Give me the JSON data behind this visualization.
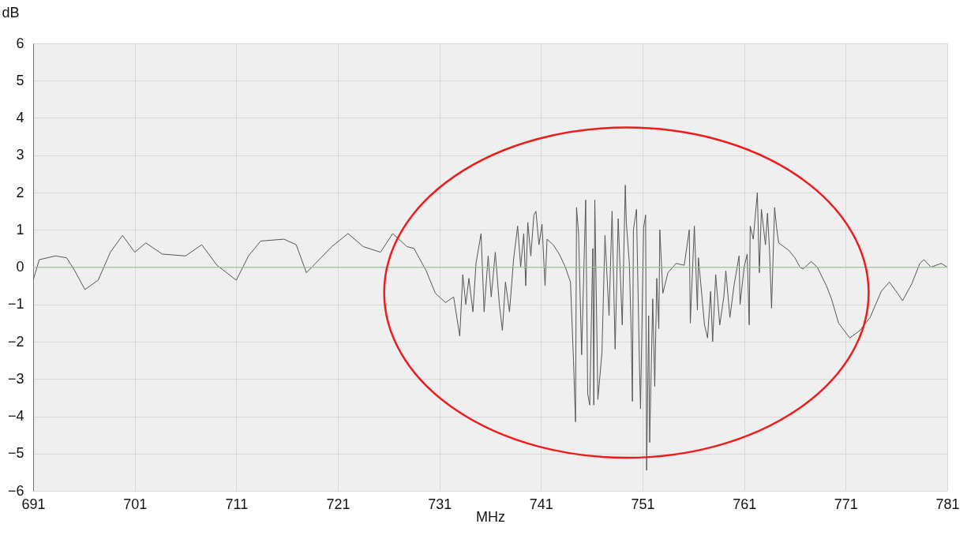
{
  "chart_data": {
    "type": "line",
    "xlabel": "MHz",
    "ylabel": "dB",
    "x": [
      691.0,
      691.6,
      693.2,
      694.3,
      695.1,
      696.1,
      697.4,
      698.6,
      699.8,
      701.0,
      702.1,
      703.7,
      706.0,
      707.6,
      709.1,
      711.0,
      712.2,
      713.4,
      715.7,
      716.9,
      717.9,
      718.8,
      720.4,
      722.0,
      723.5,
      725.2,
      726.4,
      727.8,
      728.5,
      729.7,
      730.6,
      731.6,
      732.4,
      733.0,
      733.3,
      733.6,
      733.9,
      734.3,
      734.6,
      735.1,
      735.4,
      735.8,
      736.1,
      736.5,
      736.9,
      737.2,
      737.5,
      737.9,
      738.3,
      738.7,
      739.0,
      739.3,
      739.5,
      739.7,
      740.0,
      740.3,
      740.5,
      740.8,
      741.1,
      741.4,
      741.6,
      742.2,
      742.8,
      743.4,
      743.9,
      744.2,
      744.4,
      744.5,
      744.7,
      745.0,
      745.4,
      745.6,
      745.8,
      746.1,
      746.2,
      746.3,
      746.6,
      747.0,
      747.3,
      747.7,
      748.0,
      748.3,
      748.6,
      749.0,
      749.3,
      749.4,
      749.7,
      749.9,
      750.0,
      750.1,
      750.4,
      750.7,
      750.8,
      751.1,
      751.3,
      751.4,
      751.6,
      751.7,
      752.0,
      752.2,
      752.4,
      752.6,
      752.7,
      753.0,
      753.5,
      754.3,
      755.1,
      755.6,
      755.7,
      756.1,
      756.4,
      756.5,
      757.1,
      757.4,
      757.7,
      757.9,
      758.2,
      758.6,
      759.0,
      759.2,
      759.6,
      760.0,
      760.5,
      760.6,
      761.0,
      761.3,
      761.5,
      761.6,
      761.9,
      762.3,
      762.5,
      762.7,
      763.1,
      763.3,
      763.5,
      763.7,
      764.0,
      764.2,
      764.4,
      765.4,
      766.0,
      766.5,
      766.8,
      767.6,
      768.2,
      769.1,
      769.6,
      770.3,
      771.4,
      772.4,
      773.4,
      774.5,
      775.3,
      776.1,
      776.6,
      777.5,
      778.3,
      778.7,
      779.4,
      780.4,
      781.0
    ],
    "series": [
      {
        "color": "#555555",
        "values": [
          -0.35,
          0.2,
          0.3,
          0.25,
          -0.1,
          -0.6,
          -0.35,
          0.4,
          0.85,
          0.4,
          0.65,
          0.35,
          0.3,
          0.6,
          0.05,
          -0.35,
          0.3,
          0.7,
          0.75,
          0.6,
          -0.15,
          0.1,
          0.55,
          0.9,
          0.55,
          0.4,
          0.9,
          0.55,
          0.5,
          -0.1,
          -0.7,
          -0.95,
          -0.8,
          -1.85,
          -0.2,
          -1.0,
          -0.3,
          -1.2,
          0.1,
          0.9,
          -1.2,
          0.3,
          -0.8,
          0.4,
          -1.0,
          -1.7,
          -0.4,
          -1.2,
          0.2,
          1.1,
          0.0,
          0.9,
          -0.5,
          1.2,
          0.3,
          1.4,
          1.5,
          0.6,
          1.15,
          -0.5,
          0.75,
          0.6,
          0.35,
          0.0,
          -0.4,
          -2.5,
          -4.15,
          1.6,
          0.9,
          -2.35,
          1.8,
          -3.4,
          -3.7,
          0.5,
          -3.7,
          1.8,
          -3.55,
          -2.3,
          0.85,
          -1.3,
          1.5,
          -2.2,
          1.3,
          -1.55,
          2.2,
          1.2,
          0.1,
          -1.95,
          -3.6,
          1.0,
          1.55,
          -2.7,
          -3.8,
          1.05,
          1.4,
          -5.45,
          -1.3,
          -4.7,
          -0.85,
          -3.2,
          -0.3,
          -1.65,
          1.0,
          -0.7,
          -0.15,
          0.1,
          0.05,
          1.0,
          -1.5,
          1.1,
          -1.15,
          0.25,
          -1.55,
          -1.9,
          -0.65,
          -2.0,
          -0.2,
          -1.55,
          -0.8,
          -0.1,
          -1.35,
          -0.5,
          0.3,
          -1.0,
          0.0,
          0.35,
          -1.55,
          1.1,
          0.75,
          2.0,
          -0.15,
          1.55,
          0.6,
          1.45,
          0.45,
          -1.1,
          1.6,
          1.05,
          0.65,
          0.45,
          0.25,
          0.0,
          -0.05,
          0.15,
          0.0,
          -0.5,
          -0.85,
          -1.5,
          -1.9,
          -1.7,
          -1.35,
          -0.65,
          -0.4,
          -0.7,
          -0.9,
          -0.45,
          0.1,
          0.2,
          0.0,
          0.1,
          0.0
        ]
      }
    ],
    "xlim": [
      691,
      781
    ],
    "xticks": [
      691,
      701,
      711,
      721,
      731,
      741,
      751,
      761,
      771,
      781
    ],
    "ylim": [
      -6,
      6
    ],
    "yticks": [
      -6,
      -5,
      -4,
      -3,
      -2,
      -1,
      0,
      1,
      2,
      3,
      4,
      5,
      6
    ],
    "grid": true,
    "marker": "none",
    "line_style": "solid",
    "ref_lines": [
      {
        "axis": "y",
        "value": 0,
        "color": "#9ccc9c"
      }
    ]
  }
}
